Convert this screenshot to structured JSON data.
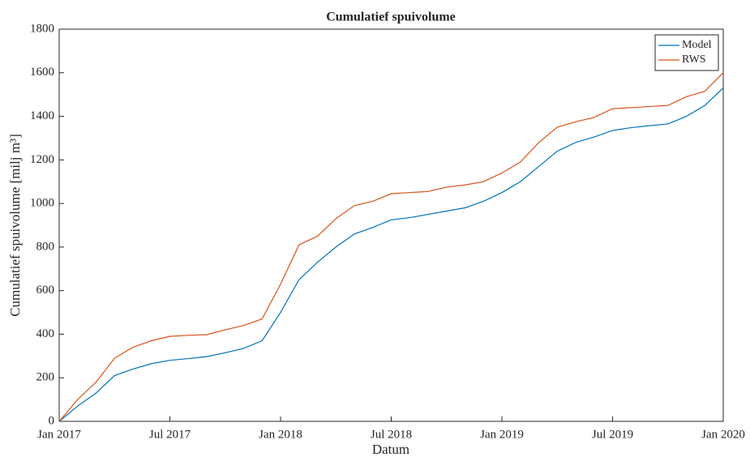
{
  "chart_data": {
    "type": "line",
    "title": "Cumulatief spuivolume",
    "x_label": "Datum",
    "y_label": "Cumulatief spuivolume [milj m³]",
    "x": [
      "2017-01",
      "2017-02",
      "2017-03",
      "2017-04",
      "2017-05",
      "2017-06",
      "2017-07",
      "2017-08",
      "2017-09",
      "2017-10",
      "2017-11",
      "2017-12",
      "2018-01",
      "2018-02",
      "2018-03",
      "2018-04",
      "2018-05",
      "2018-06",
      "2018-07",
      "2018-08",
      "2018-09",
      "2018-10",
      "2018-11",
      "2018-12",
      "2019-01",
      "2019-02",
      "2019-03",
      "2019-04",
      "2019-05",
      "2019-06",
      "2019-07",
      "2019-08",
      "2019-09",
      "2019-10",
      "2019-11",
      "2019-12",
      "2020-01"
    ],
    "series": [
      {
        "name": "Model",
        "color": "#0072bd",
        "values": [
          0,
          70,
          130,
          210,
          240,
          265,
          280,
          288,
          297,
          315,
          335,
          370,
          500,
          650,
          730,
          800,
          860,
          890,
          925,
          935,
          950,
          965,
          980,
          1010,
          1050,
          1100,
          1170,
          1240,
          1280,
          1305,
          1335,
          1348,
          1357,
          1365,
          1400,
          1450,
          1530
        ]
      },
      {
        "name": "RWS",
        "color": "#d95319",
        "values": [
          0,
          100,
          180,
          290,
          340,
          370,
          390,
          395,
          398,
          420,
          440,
          470,
          630,
          810,
          850,
          930,
          990,
          1010,
          1045,
          1050,
          1055,
          1075,
          1085,
          1100,
          1140,
          1190,
          1280,
          1350,
          1375,
          1395,
          1435,
          1440,
          1445,
          1450,
          1490,
          1515,
          1600
        ]
      }
    ],
    "xlim": [
      "2017-01",
      "2020-01"
    ],
    "xticks": [
      {
        "value": "2017-01",
        "label": "Jan 2017"
      },
      {
        "value": "2017-07",
        "label": "Jul 2017"
      },
      {
        "value": "2018-01",
        "label": "Jan 2018"
      },
      {
        "value": "2018-07",
        "label": "Jul 2018"
      },
      {
        "value": "2019-01",
        "label": "Jan 2019"
      },
      {
        "value": "2019-07",
        "label": "Jul 2019"
      },
      {
        "value": "2020-01",
        "label": "Jan 2020"
      }
    ],
    "ylim": [
      0,
      1800
    ],
    "yticks": [
      0,
      200,
      400,
      600,
      800,
      1000,
      1200,
      1400,
      1600,
      1800
    ],
    "legend": "northeast"
  }
}
